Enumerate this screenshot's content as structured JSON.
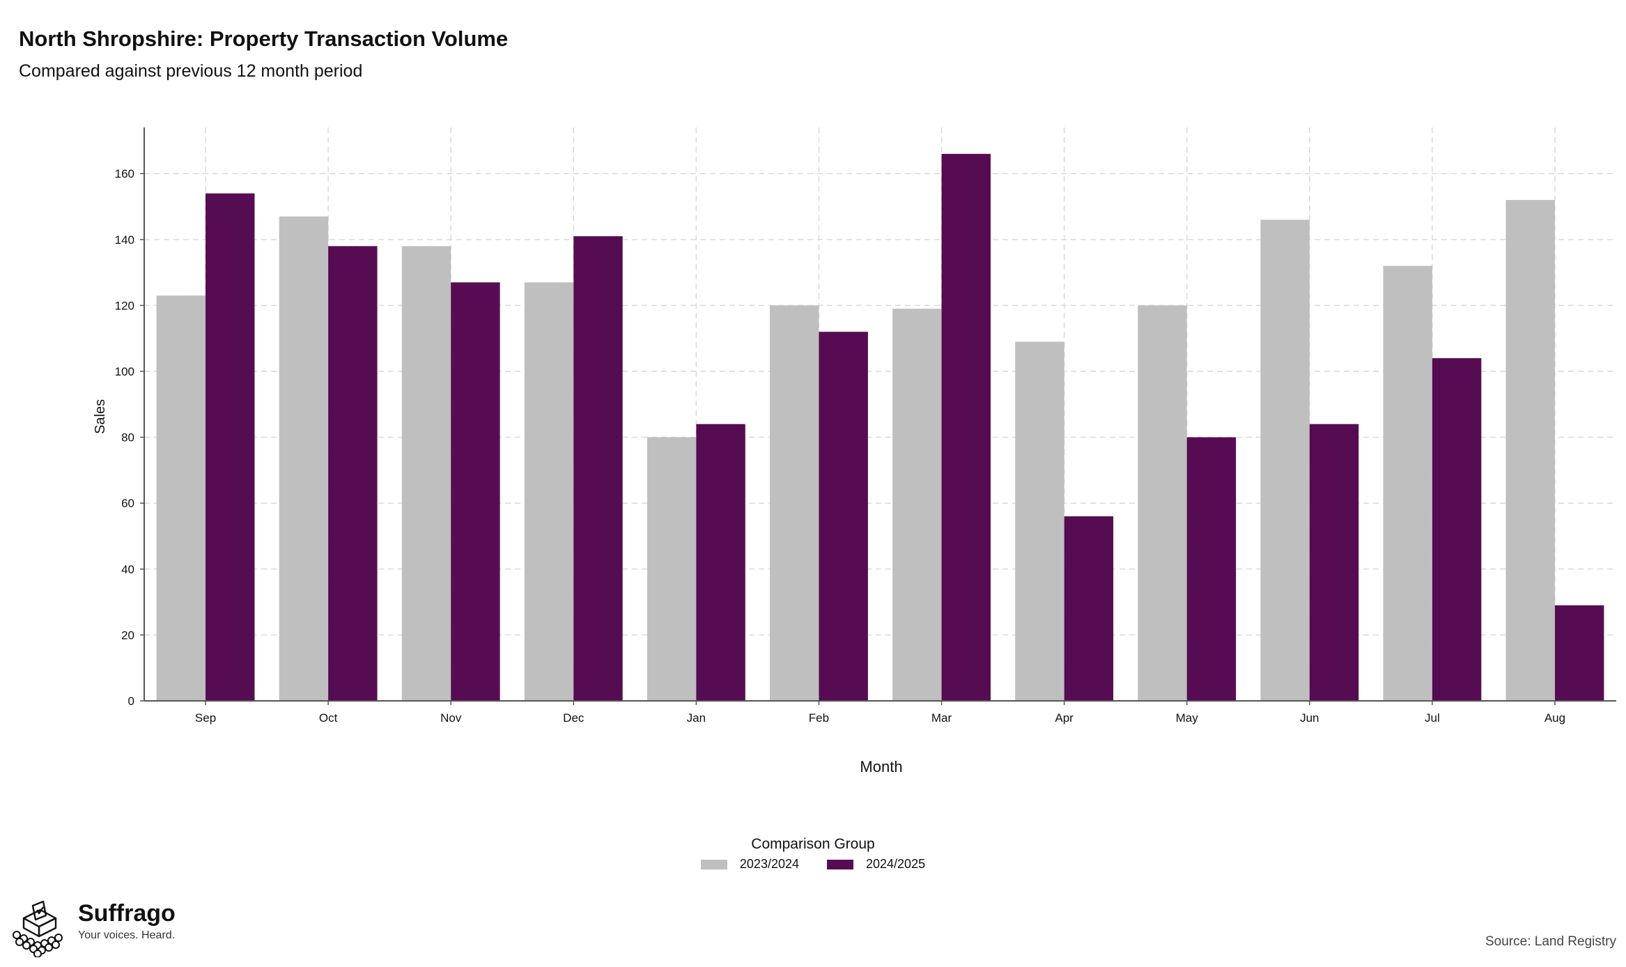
{
  "chart_data": {
    "type": "bar",
    "title": "North Shropshire: Property Transaction Volume",
    "subtitle": "Compared against previous 12 month period",
    "xlabel": "Month",
    "ylabel": "Sales",
    "categories": [
      "Sep",
      "Oct",
      "Nov",
      "Dec",
      "Jan",
      "Feb",
      "Mar",
      "Apr",
      "May",
      "Jun",
      "Jul",
      "Aug"
    ],
    "series": [
      {
        "name": "2023/2024",
        "color": "#bfbfbf",
        "values": [
          123,
          147,
          138,
          127,
          80,
          120,
          119,
          109,
          120,
          146,
          132,
          152
        ]
      },
      {
        "name": "2024/2025",
        "color": "#560c52",
        "values": [
          154,
          138,
          127,
          141,
          84,
          112,
          166,
          56,
          80,
          84,
          104,
          29
        ]
      }
    ],
    "ylim": [
      0,
      174
    ],
    "yticks": [
      0,
      20,
      40,
      60,
      80,
      100,
      120,
      140,
      160
    ],
    "grid": true,
    "legend": {
      "title": "Comparison Group",
      "placement": "bottom"
    }
  },
  "branding": {
    "name": "Suffrago",
    "tagline": "Your voices. Heard."
  },
  "source": "Source: Land Registry"
}
